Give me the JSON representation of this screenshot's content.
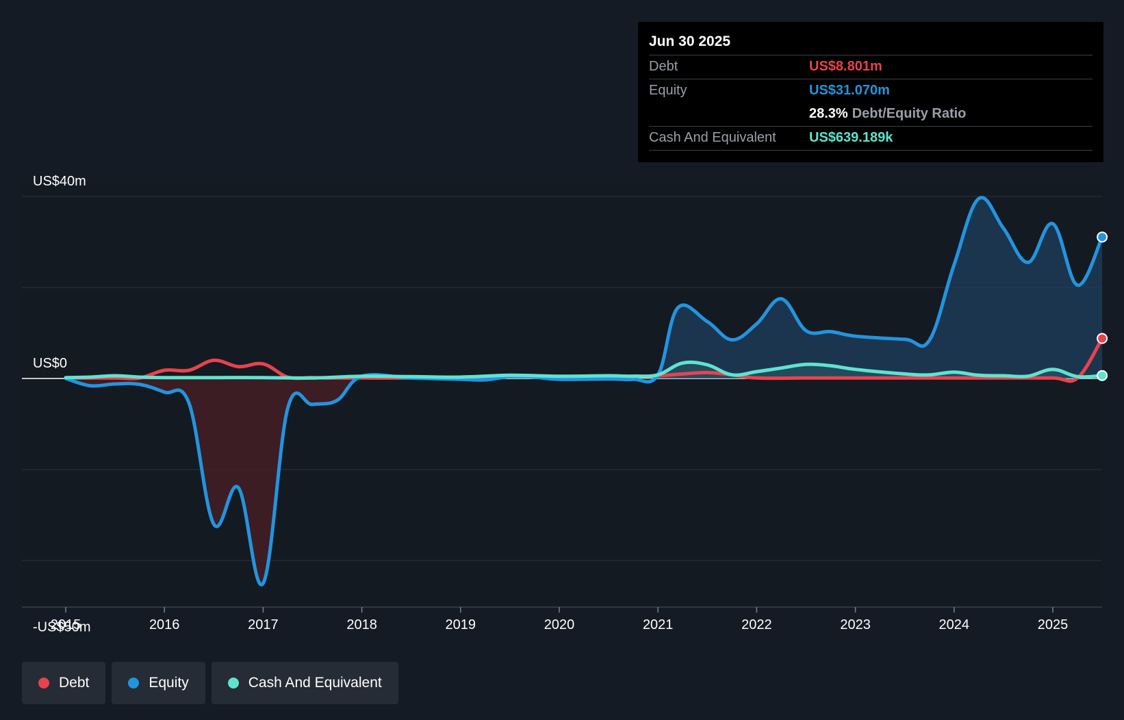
{
  "tooltip": {
    "date": "Jun 30 2025",
    "debt_label": "Debt",
    "debt_value": "US$8.801m",
    "equity_label": "Equity",
    "equity_value": "US$31.070m",
    "ratio_value": "28.3%",
    "ratio_label": "Debt/Equity Ratio",
    "cash_label": "Cash And Equivalent",
    "cash_value": "US$639.189k"
  },
  "legend": {
    "debt": "Debt",
    "equity": "Equity",
    "cash": "Cash And Equivalent"
  },
  "colors": {
    "background": "#151b24",
    "debt": "#e8434c",
    "equity": "#2394df",
    "cash": "#5fe3cf"
  },
  "chart_data": {
    "type": "line",
    "title": "",
    "xlabel": "",
    "ylabel": "",
    "xlim": [
      2014.55,
      2025.5
    ],
    "ylim": [
      -50,
      40
    ],
    "y_tick_labels": [
      {
        "value": 40,
        "label": "US$40m"
      },
      {
        "value": 0,
        "label": "US$0"
      },
      {
        "value": -50,
        "label": "-US$50m"
      }
    ],
    "gridlines": [
      40,
      20,
      0,
      -20,
      -40
    ],
    "x_ticks": [
      {
        "value": 2015,
        "label": "2015"
      },
      {
        "value": 2016,
        "label": "2016"
      },
      {
        "value": 2017,
        "label": "2017"
      },
      {
        "value": 2018,
        "label": "2018"
      },
      {
        "value": 2019,
        "label": "2019"
      },
      {
        "value": 2020,
        "label": "2020"
      },
      {
        "value": 2021,
        "label": "2021"
      },
      {
        "value": 2022,
        "label": "2022"
      },
      {
        "value": 2023,
        "label": "2023"
      },
      {
        "value": 2024,
        "label": "2024"
      },
      {
        "value": 2025,
        "label": "2025"
      }
    ],
    "series": [
      {
        "name": "Debt",
        "key": "debt",
        "points": [
          [
            2015.0,
            0.1
          ],
          [
            2015.25,
            0.1
          ],
          [
            2015.5,
            0.1
          ],
          [
            2015.75,
            0.1
          ],
          [
            2016.0,
            1.8
          ],
          [
            2016.25,
            1.8
          ],
          [
            2016.5,
            4.0
          ],
          [
            2016.75,
            2.6
          ],
          [
            2017.0,
            3.2
          ],
          [
            2017.25,
            0.3
          ],
          [
            2017.5,
            0.2
          ],
          [
            2017.75,
            0.1
          ],
          [
            2018.0,
            0.1
          ],
          [
            2018.5,
            0.1
          ],
          [
            2019.0,
            0.3
          ],
          [
            2019.5,
            0.5
          ],
          [
            2020.0,
            0.4
          ],
          [
            2020.5,
            0.5
          ],
          [
            2020.75,
            0.5
          ],
          [
            2021.0,
            0.6
          ],
          [
            2021.25,
            1.0
          ],
          [
            2021.5,
            1.3
          ],
          [
            2021.75,
            0.8
          ],
          [
            2022.0,
            0.1
          ],
          [
            2022.5,
            0.1
          ],
          [
            2023.0,
            0.1
          ],
          [
            2023.5,
            0.1
          ],
          [
            2024.0,
            0.1
          ],
          [
            2024.5,
            0.1
          ],
          [
            2025.0,
            0.1
          ],
          [
            2025.25,
            0.1
          ],
          [
            2025.5,
            8.8
          ]
        ]
      },
      {
        "name": "Equity",
        "key": "equity",
        "points": [
          [
            2015.0,
            0.0
          ],
          [
            2015.25,
            -1.6
          ],
          [
            2015.5,
            -1.2
          ],
          [
            2015.75,
            -1.3
          ],
          [
            2016.0,
            -3.0
          ],
          [
            2016.25,
            -5.5
          ],
          [
            2016.5,
            -32.0
          ],
          [
            2016.75,
            -24.0
          ],
          [
            2017.0,
            -45.0
          ],
          [
            2017.25,
            -6.5
          ],
          [
            2017.5,
            -5.7
          ],
          [
            2017.75,
            -4.8
          ],
          [
            2018.0,
            0.5
          ],
          [
            2018.5,
            0.1
          ],
          [
            2019.0,
            -0.2
          ],
          [
            2019.25,
            -0.3
          ],
          [
            2019.5,
            0.4
          ],
          [
            2019.75,
            0.3
          ],
          [
            2020.0,
            -0.2
          ],
          [
            2020.5,
            -0.1
          ],
          [
            2020.75,
            -0.2
          ],
          [
            2021.0,
            0.8
          ],
          [
            2021.2,
            15.5
          ],
          [
            2021.5,
            12.5
          ],
          [
            2021.75,
            8.5
          ],
          [
            2022.0,
            12.0
          ],
          [
            2022.25,
            17.5
          ],
          [
            2022.5,
            10.5
          ],
          [
            2022.75,
            10.3
          ],
          [
            2023.0,
            9.3
          ],
          [
            2023.5,
            8.6
          ],
          [
            2023.75,
            8.4
          ],
          [
            2024.0,
            25.0
          ],
          [
            2024.25,
            39.5
          ],
          [
            2024.5,
            33.0
          ],
          [
            2024.75,
            25.5
          ],
          [
            2025.0,
            34.0
          ],
          [
            2025.25,
            20.5
          ],
          [
            2025.5,
            31.07
          ]
        ]
      },
      {
        "name": "Cash And Equivalent",
        "key": "cash",
        "points": [
          [
            2015.0,
            0.2
          ],
          [
            2015.25,
            0.3
          ],
          [
            2015.5,
            0.6
          ],
          [
            2015.75,
            0.3
          ],
          [
            2016.0,
            0.2
          ],
          [
            2016.5,
            0.2
          ],
          [
            2017.0,
            0.2
          ],
          [
            2017.5,
            0.1
          ],
          [
            2018.0,
            0.5
          ],
          [
            2018.5,
            0.4
          ],
          [
            2019.0,
            0.3
          ],
          [
            2019.5,
            0.7
          ],
          [
            2020.0,
            0.5
          ],
          [
            2020.5,
            0.6
          ],
          [
            2020.75,
            0.5
          ],
          [
            2021.0,
            0.8
          ],
          [
            2021.25,
            3.4
          ],
          [
            2021.5,
            3.0
          ],
          [
            2021.75,
            0.8
          ],
          [
            2022.0,
            1.5
          ],
          [
            2022.25,
            2.3
          ],
          [
            2022.5,
            3.1
          ],
          [
            2022.75,
            2.8
          ],
          [
            2023.0,
            2.0
          ],
          [
            2023.5,
            1.0
          ],
          [
            2023.75,
            0.8
          ],
          [
            2024.0,
            1.4
          ],
          [
            2024.25,
            0.7
          ],
          [
            2024.5,
            0.6
          ],
          [
            2024.75,
            0.5
          ],
          [
            2025.0,
            2.0
          ],
          [
            2025.25,
            0.4
          ],
          [
            2025.5,
            0.639
          ]
        ]
      }
    ]
  }
}
